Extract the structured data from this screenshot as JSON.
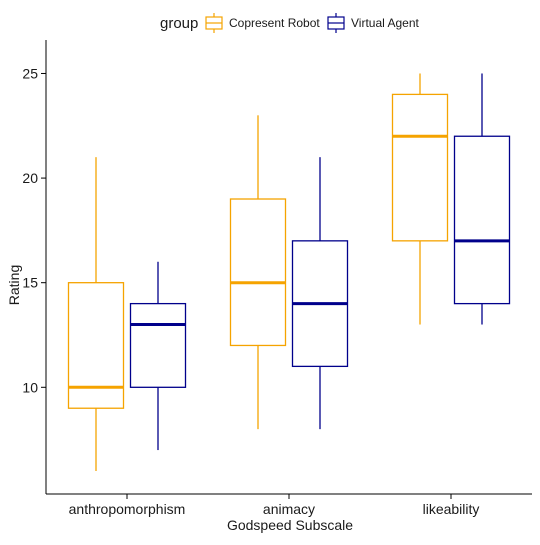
{
  "chart_data": {
    "type": "boxplot",
    "title": "",
    "xlabel": "Godspeed Subscale",
    "ylabel": "Rating",
    "categories": [
      "anthropomorphism",
      "animacy",
      "likeability"
    ],
    "ylim": [
      4.9,
      26.6
    ],
    "yticks": [
      10,
      15,
      20,
      25
    ],
    "grid": false,
    "legend": {
      "title": "group",
      "placement": "top"
    },
    "series": [
      {
        "name": "Copresent Robot",
        "color": "#F5A300",
        "boxes": [
          {
            "min": 6,
            "q1": 9,
            "median": 10,
            "q3": 15,
            "max": 21
          },
          {
            "min": 8,
            "q1": 12,
            "median": 15,
            "q3": 19,
            "max": 23
          },
          {
            "min": 13,
            "q1": 17,
            "median": 22,
            "q3": 24,
            "max": 25
          }
        ]
      },
      {
        "name": "Virtual Agent",
        "color": "#00008B",
        "boxes": [
          {
            "min": 7,
            "q1": 10,
            "median": 13,
            "q3": 14,
            "max": 16
          },
          {
            "min": 8,
            "q1": 11,
            "median": 14,
            "q3": 17,
            "max": 21
          },
          {
            "min": 13,
            "q1": 14,
            "median": 17,
            "q3": 22,
            "max": 25
          }
        ]
      }
    ]
  }
}
